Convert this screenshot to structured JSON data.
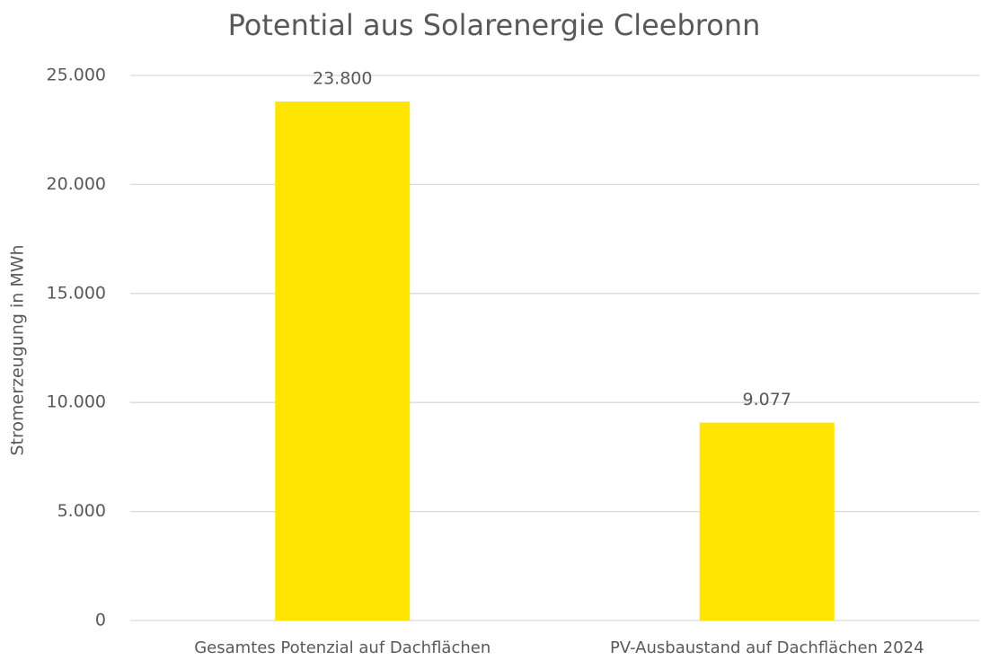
{
  "chart_data": {
    "type": "bar",
    "title": "Potential aus Solarenergie Cleebronn",
    "y_axis_label": "Stromerzeugung in MWh",
    "categories": [
      "Gesamtes Potenzial auf Dachflächen",
      "PV-Ausbaustand auf Dachflächen 2024"
    ],
    "values": [
      23800,
      9077
    ],
    "value_labels": [
      "23.800",
      "9.077"
    ],
    "color": "#ffe500",
    "ylim": [
      0,
      25000
    ],
    "yticks": [
      0,
      {
        "value": 5000,
        "label": "5.000"
      },
      {
        "value": 10000,
        "label": "10.000"
      },
      {
        "value": 15000,
        "label": "15.000"
      },
      {
        "value": 20000,
        "label": "20.000"
      },
      {
        "value": 25000,
        "label": "25.000"
      }
    ],
    "grid": true
  }
}
